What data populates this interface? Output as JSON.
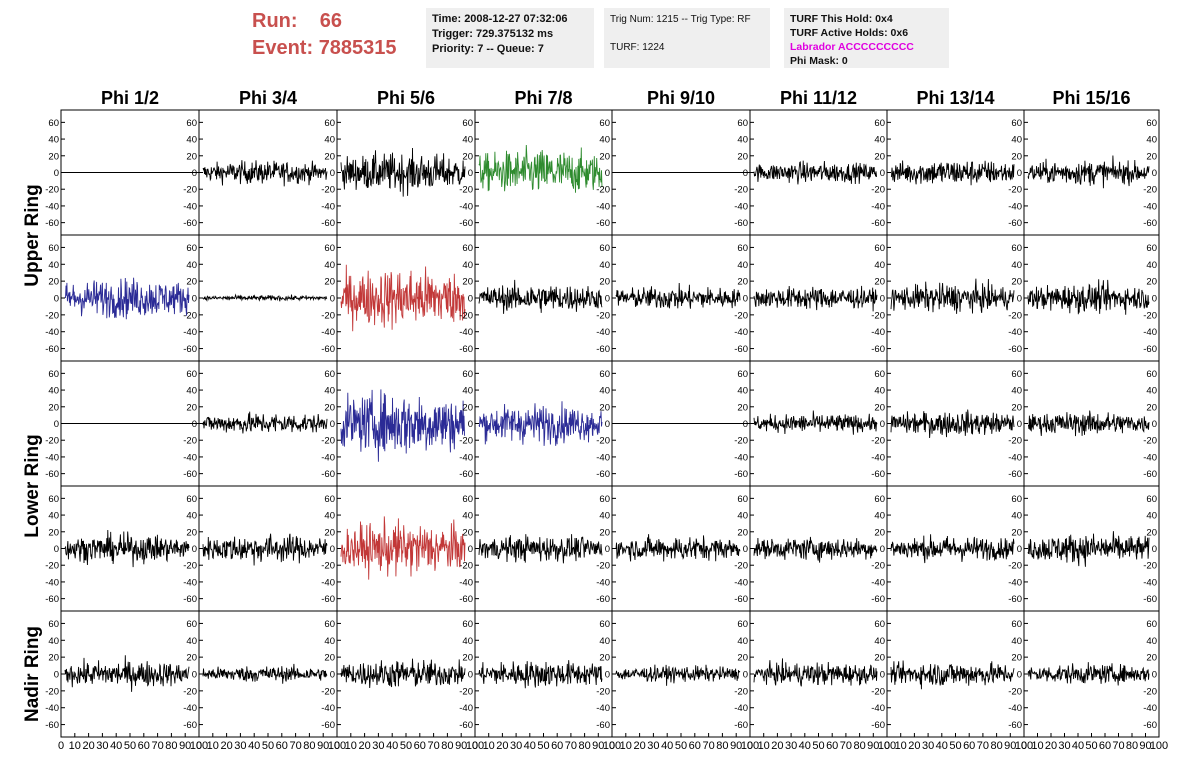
{
  "header": {
    "run_label": "Run:",
    "run_value": "66",
    "event_label": "Event:",
    "event_value": "7885315"
  },
  "info_boxes": {
    "time": "Time: 2008-12-27 07:32:06",
    "trigger": "Trigger: 729.375132 ms",
    "priority": "Priority: 7 -- Queue: 7",
    "trig_num": "Trig Num: 1215 -- Trig Type: RF",
    "turf": "TURF: 1224",
    "turf_this_hold": "TURF This Hold: 0x4",
    "turf_active_holds": "TURF Active Holds: 0x6",
    "labrador": "Labrador ACCCCCCCCC",
    "phi_mask": "Phi Mask: 0"
  },
  "chart_data": {
    "type": "line",
    "columns": [
      "Phi 1/2",
      "Phi 3/4",
      "Phi 5/6",
      "Phi 7/8",
      "Phi 9/10",
      "Phi 11/12",
      "Phi 13/14",
      "Phi 15/16"
    ],
    "ring_labels": [
      "Upper Ring",
      "Lower Ring",
      "Nadir Ring"
    ],
    "xlim": [
      0,
      100
    ],
    "ylim": [
      -70,
      70
    ],
    "x_ticks": [
      "0",
      "10",
      "20",
      "30",
      "40",
      "50",
      "60",
      "70",
      "80",
      "90",
      "100"
    ],
    "y_ticks": [
      -60,
      -40,
      -20,
      0,
      20,
      40,
      60
    ],
    "grid": false,
    "colors": {
      "black": "#000000",
      "green": "#2e8b2e",
      "blue": "#2b2b96",
      "red": "#c23838"
    },
    "panels": [
      [
        {
          "amp": 0,
          "color": "black"
        },
        {
          "amp": 13,
          "color": "black"
        },
        {
          "amp": 22,
          "color": "black"
        },
        {
          "amp": 26,
          "color": "green"
        },
        {
          "amp": 0,
          "color": "black"
        },
        {
          "amp": 12,
          "color": "black"
        },
        {
          "amp": 15,
          "color": "black"
        },
        {
          "amp": 14,
          "color": "black"
        }
      ],
      [
        {
          "amp": 22,
          "color": "blue"
        },
        {
          "amp": 3,
          "color": "black"
        },
        {
          "amp": 34,
          "color": "red"
        },
        {
          "amp": 16,
          "color": "black"
        },
        {
          "amp": 13,
          "color": "black"
        },
        {
          "amp": 13,
          "color": "black"
        },
        {
          "amp": 16,
          "color": "black"
        },
        {
          "amp": 16,
          "color": "black"
        }
      ],
      [
        {
          "amp": 0,
          "color": "black"
        },
        {
          "amp": 12,
          "color": "black"
        },
        {
          "amp": 36,
          "color": "blue"
        },
        {
          "amp": 22,
          "color": "blue"
        },
        {
          "amp": 0,
          "color": "black"
        },
        {
          "amp": 11,
          "color": "black"
        },
        {
          "amp": 14,
          "color": "black"
        },
        {
          "amp": 13,
          "color": "black"
        }
      ],
      [
        {
          "amp": 16,
          "color": "black"
        },
        {
          "amp": 16,
          "color": "black"
        },
        {
          "amp": 30,
          "color": "red"
        },
        {
          "amp": 15,
          "color": "black"
        },
        {
          "amp": 14,
          "color": "black"
        },
        {
          "amp": 13,
          "color": "black"
        },
        {
          "amp": 14,
          "color": "black"
        },
        {
          "amp": 17,
          "color": "black"
        }
      ],
      [
        {
          "amp": 15,
          "color": "black"
        },
        {
          "amp": 9,
          "color": "black"
        },
        {
          "amp": 16,
          "color": "black"
        },
        {
          "amp": 15,
          "color": "black"
        },
        {
          "amp": 9,
          "color": "black"
        },
        {
          "amp": 13,
          "color": "black"
        },
        {
          "amp": 14,
          "color": "black"
        },
        {
          "amp": 11,
          "color": "black"
        }
      ]
    ]
  }
}
